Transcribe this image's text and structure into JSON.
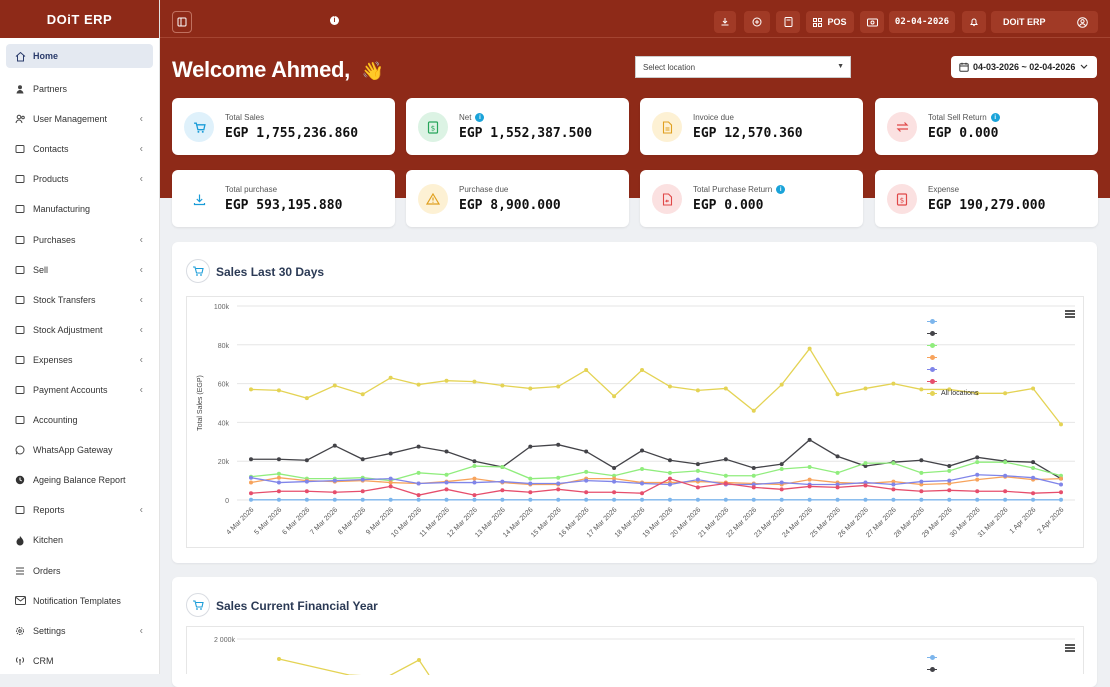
{
  "app": {
    "brand": "DOiT ERP"
  },
  "sidebar": {
    "items": [
      {
        "label": "Home",
        "icon": "home-icon",
        "chevron": false,
        "active": true
      },
      {
        "label": "Partners",
        "icon": "user-icon",
        "chevron": false
      },
      {
        "label": "User Management",
        "icon": "users-icon",
        "chevron": true
      },
      {
        "label": "Contacts",
        "icon": "contacts-icon",
        "chevron": true
      },
      {
        "label": "Products",
        "icon": "box-icon",
        "chevron": true
      },
      {
        "label": "Manufacturing",
        "icon": "factory-icon",
        "chevron": false
      },
      {
        "label": "Purchases",
        "icon": "download-circle-icon",
        "chevron": true
      },
      {
        "label": "Sell",
        "icon": "upload-circle-icon",
        "chevron": true
      },
      {
        "label": "Stock Transfers",
        "icon": "truck-icon",
        "chevron": true
      },
      {
        "label": "Stock Adjustment",
        "icon": "database-icon",
        "chevron": true
      },
      {
        "label": "Expenses",
        "icon": "money-icon",
        "chevron": true
      },
      {
        "label": "Payment Accounts",
        "icon": "card-icon",
        "chevron": true
      },
      {
        "label": "Accounting",
        "icon": "bank-icon",
        "chevron": false
      },
      {
        "label": "WhatsApp Gateway",
        "icon": "whatsapp-icon",
        "chevron": false
      },
      {
        "label": "Ageing Balance Report",
        "icon": "clock-icon",
        "chevron": false
      },
      {
        "label": "Reports",
        "icon": "report-icon",
        "chevron": true
      },
      {
        "label": "Kitchen",
        "icon": "fire-icon",
        "chevron": false
      },
      {
        "label": "Orders",
        "icon": "list-icon",
        "chevron": false
      },
      {
        "label": "Notification Templates",
        "icon": "envelope-icon",
        "chevron": false
      },
      {
        "label": "Settings",
        "icon": "gear-icon",
        "chevron": true
      },
      {
        "label": "CRM",
        "icon": "broadcast-icon",
        "chevron": false
      }
    ]
  },
  "topbar": {
    "pos_label": "POS",
    "date": "02-04-2026",
    "business_label": "DOiT ERP"
  },
  "header": {
    "welcome": "Welcome Ahmed,",
    "wave": "👋",
    "location_placeholder": "Select location",
    "date_range": "04-03-2026 ~ 02-04-2026"
  },
  "cards": [
    {
      "label": "Total Sales",
      "value": "EGP 1,755,236.860",
      "info": false,
      "icon": "cart-icon",
      "bg": "#dff1fb",
      "fg": "#1a9cd8"
    },
    {
      "label": "Net",
      "value": "EGP 1,552,387.500",
      "info": true,
      "icon": "cash-icon",
      "bg": "#dcf3e4",
      "fg": "#27a55a"
    },
    {
      "label": "Invoice due",
      "value": "EGP 12,570.360",
      "info": false,
      "icon": "invoice-icon",
      "bg": "#fdf1d4",
      "fg": "#e0a020"
    },
    {
      "label": "Total Sell Return",
      "value": "EGP 0.000",
      "info": true,
      "icon": "exchange-icon",
      "bg": "#fbe1e1",
      "fg": "#e04848"
    },
    {
      "label": "Total purchase",
      "value": "EGP 593,195.880",
      "info": false,
      "icon": "download-icon",
      "bg": "#ffffff",
      "fg": "#1a9cd8"
    },
    {
      "label": "Purchase due",
      "value": "EGP 8,900.000",
      "info": false,
      "icon": "warning-icon",
      "bg": "#fdf1d4",
      "fg": "#e0a020"
    },
    {
      "label": "Total Purchase Return",
      "value": "EGP 0.000",
      "info": true,
      "icon": "return-doc-icon",
      "bg": "#fbe1e1",
      "fg": "#e04848"
    },
    {
      "label": "Expense",
      "value": "EGP 190,279.000",
      "info": false,
      "icon": "expense-icon",
      "bg": "#fbe1e1",
      "fg": "#e04848"
    }
  ],
  "panels": {
    "sales_30": "Sales Last 30 Days",
    "sales_fy": "Sales Current Financial Year"
  },
  "chart_data": [
    {
      "type": "line",
      "title": "Sales Last 30 Days",
      "ylabel": "Total Sales (EGP)",
      "ylim": [
        0,
        100000
      ],
      "yticks": [
        "0",
        "20k",
        "40k",
        "60k",
        "80k",
        "100k"
      ],
      "legend_position": "top-right",
      "categories": [
        "4 Mar 2026",
        "5 Mar 2026",
        "6 Mar 2026",
        "7 Mar 2026",
        "8 Mar 2026",
        "9 Mar 2026",
        "10 Mar 2026",
        "11 Mar 2026",
        "12 Mar 2026",
        "13 Mar 2026",
        "14 Mar 2026",
        "15 Mar 2026",
        "16 Mar 2026",
        "17 Mar 2026",
        "18 Mar 2026",
        "19 Mar 2026",
        "20 Mar 2026",
        "21 Mar 2026",
        "22 Mar 2026",
        "23 Mar 2026",
        "24 Mar 2026",
        "25 Mar 2026",
        "26 Mar 2026",
        "27 Mar 2026",
        "28 Mar 2026",
        "29 Mar 2026",
        "30 Mar 2026",
        "31 Mar 2026",
        "1 Apr 2026",
        "2 Apr 2026"
      ],
      "series": [
        {
          "name": "",
          "color": "#7cb5ec",
          "values": [
            100,
            100,
            100,
            100,
            100,
            100,
            100,
            100,
            100,
            100,
            100,
            100,
            100,
            100,
            100,
            100,
            100,
            100,
            100,
            100,
            100,
            100,
            100,
            100,
            100,
            100,
            100,
            100,
            100,
            100
          ]
        },
        {
          "name": "",
          "color": "#434348",
          "values": [
            21000,
            21000,
            20500,
            28000,
            21000,
            24000,
            27500,
            25000,
            20000,
            17000,
            27500,
            28500,
            25000,
            16500,
            25500,
            20500,
            18500,
            21000,
            16500,
            18500,
            31000,
            22500,
            17500,
            19500,
            20500,
            17500,
            22000,
            20000,
            19500,
            11000
          ]
        },
        {
          "name": "",
          "color": "#90ed7d",
          "values": [
            12000,
            13500,
            11000,
            11000,
            11500,
            10000,
            14000,
            13000,
            17500,
            17000,
            11000,
            11500,
            14500,
            12500,
            16000,
            14000,
            15000,
            12500,
            12500,
            16000,
            17000,
            14000,
            19000,
            19000,
            14000,
            15000,
            19500,
            19500,
            16500,
            12500
          ]
        },
        {
          "name": "",
          "color": "#f7a35c",
          "values": [
            9000,
            11500,
            10000,
            9500,
            10000,
            9000,
            8500,
            9500,
            11000,
            9000,
            8000,
            8000,
            11000,
            11000,
            9000,
            9000,
            9500,
            9000,
            8500,
            8000,
            10500,
            9000,
            8500,
            9500,
            8000,
            8500,
            10500,
            12000,
            10500,
            11000
          ]
        },
        {
          "name": "",
          "color": "#8085e9",
          "values": [
            11500,
            9000,
            9500,
            10000,
            10500,
            11000,
            8500,
            9000,
            9000,
            9500,
            8500,
            8500,
            10000,
            9500,
            8500,
            8000,
            10500,
            8000,
            8000,
            9000,
            8000,
            8000,
            9000,
            8000,
            9500,
            10000,
            13000,
            12500,
            11500,
            8000
          ]
        },
        {
          "name": "",
          "color": "#e64e6c",
          "values": [
            3500,
            4500,
            4500,
            4000,
            4500,
            7000,
            2500,
            5500,
            2500,
            5000,
            4000,
            5500,
            4000,
            4000,
            3500,
            11000,
            6500,
            8500,
            6500,
            5500,
            7000,
            6500,
            7500,
            5500,
            4500,
            5000,
            4500,
            4500,
            3500,
            4000
          ]
        },
        {
          "name": "All locations",
          "color": "#e4d354",
          "values": [
            57000,
            56500,
            52500,
            59000,
            54500,
            63000,
            59500,
            61500,
            61000,
            59000,
            57500,
            58500,
            67000,
            53500,
            67000,
            58500,
            56500,
            57500,
            46000,
            59500,
            78000,
            54500,
            57500,
            60000,
            57000,
            57000,
            55000,
            55000,
            57500,
            39000
          ]
        }
      ]
    },
    {
      "type": "line",
      "title": "Sales Current Financial Year",
      "ylabel": "",
      "yticks": [
        "2 000k"
      ],
      "series": [
        {
          "name": "",
          "color": "#7cb5ec",
          "values": []
        },
        {
          "name": "",
          "color": "#434348",
          "values": []
        },
        {
          "name": "",
          "color": "#e4d354",
          "values": []
        }
      ]
    }
  ]
}
